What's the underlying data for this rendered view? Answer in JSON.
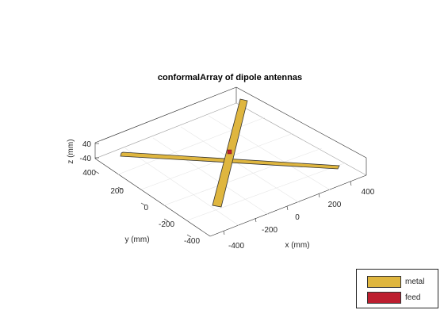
{
  "figure": {
    "title": "conformalArray of dipole antennas",
    "axes": {
      "xlabel": "x (mm)",
      "ylabel": "y (mm)",
      "zlabel": "z (mm)",
      "x_ticks": [
        "-400",
        "-200",
        "0",
        "200",
        "400"
      ],
      "y_ticks": [
        "400",
        "200",
        "0",
        "-200",
        "-400"
      ],
      "z_ticks": [
        "40",
        "-40"
      ]
    },
    "colors": {
      "metal": "#dfb63f",
      "feed": "#bd1e2f",
      "axis": "#262626"
    }
  },
  "legend": {
    "items": [
      {
        "label": "metal",
        "color": "#dfb63f"
      },
      {
        "label": "feed",
        "color": "#bd1e2f"
      }
    ]
  }
}
